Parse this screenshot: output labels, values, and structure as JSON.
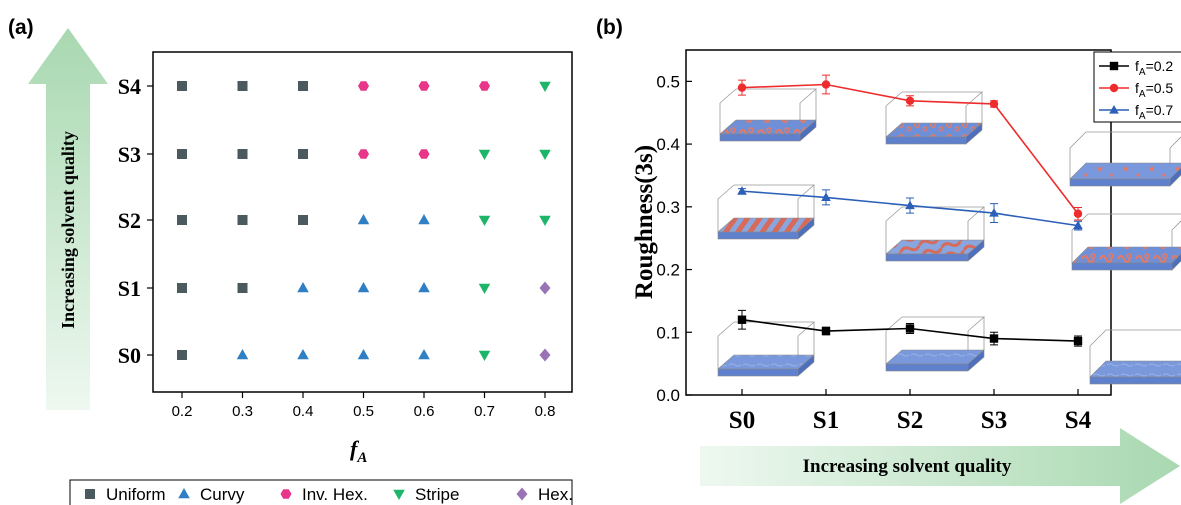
{
  "panel_labels": {
    "a": "(a)",
    "b": "(b)"
  },
  "colors": {
    "Uniform": "#4a5a5f",
    "Curvy": "#2f7fc4",
    "Inv. Hex.": "#e8358a",
    "Stripe": "#1db56a",
    "Hex.": "#9a73b5",
    "fA02": "#000000",
    "fA05": "#ee2c2c",
    "fA07": "#2b5fb8",
    "arrow_dark": "#a8d8b0",
    "arrow_light": "#eef8f0"
  },
  "chart_data": [
    {
      "type": "scatter",
      "panel": "a",
      "xlabel": "f",
      "xlabel_sub": "A",
      "ylabel_arrow": "Increasing solvent quality",
      "x_ticks": [
        "0.2",
        "0.3",
        "0.4",
        "0.5",
        "0.6",
        "0.7",
        "0.8"
      ],
      "y_ticks": [
        "S0",
        "S1",
        "S2",
        "S3",
        "S4"
      ],
      "xlim": [
        0.15,
        0.85
      ],
      "legend": {
        "placement": "bottom",
        "entries": [
          {
            "name": "Uniform",
            "marker": "square"
          },
          {
            "name": "Curvy",
            "marker": "triangle-up"
          },
          {
            "name": "Inv. Hex.",
            "marker": "hexagon"
          },
          {
            "name": "Stripe",
            "marker": "triangle-down"
          },
          {
            "name": "Hex.",
            "marker": "diamond"
          }
        ]
      },
      "grid": [
        {
          "level": "S4",
          "phases": [
            "Uniform",
            "Uniform",
            "Uniform",
            "Inv. Hex.",
            "Inv. Hex.",
            "Inv. Hex.",
            "Stripe"
          ]
        },
        {
          "level": "S3",
          "phases": [
            "Uniform",
            "Uniform",
            "Uniform",
            "Inv. Hex.",
            "Inv. Hex.",
            "Stripe",
            "Stripe"
          ]
        },
        {
          "level": "S2",
          "phases": [
            "Uniform",
            "Uniform",
            "Uniform",
            "Curvy",
            "Curvy",
            "Stripe",
            "Stripe"
          ]
        },
        {
          "level": "S1",
          "phases": [
            "Uniform",
            "Uniform",
            "Curvy",
            "Curvy",
            "Curvy",
            "Stripe",
            "Hex."
          ]
        },
        {
          "level": "S0",
          "phases": [
            "Uniform",
            "Curvy",
            "Curvy",
            "Curvy",
            "Curvy",
            "Stripe",
            "Hex."
          ]
        }
      ]
    },
    {
      "type": "line",
      "panel": "b",
      "ylabel": "Roughness(3s)",
      "x_arrow": "Increasing solvent quality",
      "categories": [
        "S0",
        "S1",
        "S2",
        "S3",
        "S4"
      ],
      "ylim": [
        0.0,
        0.55
      ],
      "y_ticks": [
        "0.0",
        "0.1",
        "0.2",
        "0.3",
        "0.4",
        "0.5"
      ],
      "legend": {
        "placement": "top-right"
      },
      "series": [
        {
          "name": "f_A=0.2",
          "legend_main": "f",
          "legend_sub": "A",
          "legend_rest": "=0.2",
          "marker": "square",
          "color_key": "fA02",
          "values": [
            0.12,
            0.102,
            0.106,
            0.09,
            0.086
          ],
          "errors": [
            0.015,
            0.006,
            0.008,
            0.01,
            0.008
          ]
        },
        {
          "name": "f_A=0.5",
          "legend_main": "f",
          "legend_sub": "A",
          "legend_rest": "=0.5",
          "marker": "circle",
          "color_key": "fA05",
          "values": [
            0.49,
            0.495,
            0.469,
            0.464,
            0.289
          ],
          "errors": [
            0.012,
            0.015,
            0.008,
            0.005,
            0.01
          ]
        },
        {
          "name": "f_A=0.7",
          "legend_main": "f",
          "legend_sub": "A",
          "legend_rest": "=0.7",
          "marker": "triangle-up",
          "color_key": "fA07",
          "values": [
            0.325,
            0.315,
            0.302,
            0.29,
            0.27
          ],
          "errors": [
            0.004,
            0.012,
            0.012,
            0.015,
            0.007
          ]
        }
      ]
    }
  ]
}
